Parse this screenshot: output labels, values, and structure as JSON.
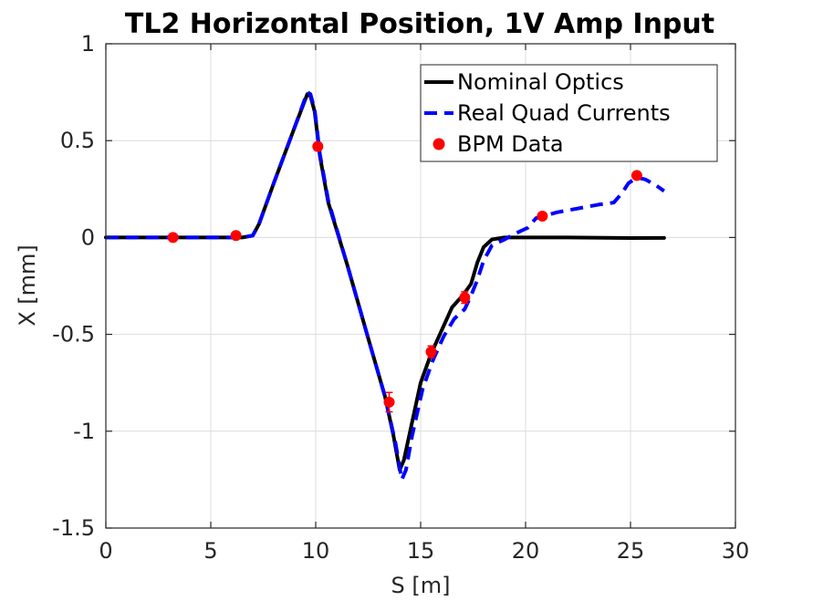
{
  "chart_data": {
    "type": "line",
    "title": "TL2 Horizontal Position, 1V Amp Input",
    "xlabel": "S [m]",
    "ylabel": "X [mm]",
    "xlim": [
      0,
      30
    ],
    "ylim": [
      -1.5,
      1
    ],
    "xticks": [
      0,
      5,
      10,
      15,
      20,
      25,
      30
    ],
    "yticks": [
      -1.5,
      -1,
      -0.5,
      0,
      0.5,
      1
    ],
    "xtick_labels": [
      "0",
      "5",
      "10",
      "15",
      "20",
      "25",
      "30"
    ],
    "ytick_labels": [
      "-1.5",
      "-1",
      "-0.5",
      "0",
      "0.5",
      "1"
    ],
    "grid": true,
    "legend_position": "top-right",
    "series": [
      {
        "name": "Nominal Optics",
        "style": "solid",
        "color": "#000000",
        "points": [
          [
            0,
            0
          ],
          [
            6.5,
            0
          ],
          [
            7.0,
            0.01
          ],
          [
            7.3,
            0.07
          ],
          [
            8.0,
            0.28
          ],
          [
            9.0,
            0.57
          ],
          [
            9.6,
            0.74
          ],
          [
            9.75,
            0.73
          ],
          [
            9.95,
            0.65
          ],
          [
            10.2,
            0.42
          ],
          [
            10.6,
            0.18
          ],
          [
            11.5,
            -0.14
          ],
          [
            12.5,
            -0.52
          ],
          [
            13.3,
            -0.82
          ],
          [
            13.7,
            -1.02
          ],
          [
            14.0,
            -1.2
          ],
          [
            14.2,
            -1.15
          ],
          [
            14.5,
            -1.0
          ],
          [
            15.0,
            -0.75
          ],
          [
            15.5,
            -0.6
          ],
          [
            16.0,
            -0.48
          ],
          [
            16.5,
            -0.36
          ],
          [
            17.0,
            -0.3
          ],
          [
            17.4,
            -0.24
          ],
          [
            17.7,
            -0.13
          ],
          [
            18.0,
            -0.05
          ],
          [
            18.4,
            -0.01
          ],
          [
            19.0,
            0
          ],
          [
            22.0,
            0
          ],
          [
            25.0,
            -0.003
          ],
          [
            26.6,
            -0.002
          ]
        ]
      },
      {
        "name": "Real Quad Currents",
        "style": "dashed",
        "color": "#0000ff",
        "points": [
          [
            0,
            0
          ],
          [
            6.5,
            0
          ],
          [
            7.0,
            0.01
          ],
          [
            7.3,
            0.07
          ],
          [
            8.0,
            0.28
          ],
          [
            9.0,
            0.57
          ],
          [
            9.6,
            0.75
          ],
          [
            9.75,
            0.74
          ],
          [
            9.95,
            0.66
          ],
          [
            10.2,
            0.43
          ],
          [
            10.6,
            0.19
          ],
          [
            11.5,
            -0.14
          ],
          [
            12.5,
            -0.52
          ],
          [
            13.3,
            -0.82
          ],
          [
            13.8,
            -1.06
          ],
          [
            14.1,
            -1.25
          ],
          [
            14.3,
            -1.2
          ],
          [
            14.6,
            -1.02
          ],
          [
            15.1,
            -0.78
          ],
          [
            15.6,
            -0.63
          ],
          [
            16.1,
            -0.51
          ],
          [
            16.6,
            -0.42
          ],
          [
            17.1,
            -0.37
          ],
          [
            17.4,
            -0.3
          ],
          [
            17.7,
            -0.22
          ],
          [
            18.0,
            -0.12
          ],
          [
            18.4,
            -0.04
          ],
          [
            19.0,
            -0.01
          ],
          [
            19.5,
            0.02
          ],
          [
            20.1,
            0.05
          ],
          [
            20.5,
            0.1
          ],
          [
            21.5,
            0.13
          ],
          [
            22.5,
            0.15
          ],
          [
            23.5,
            0.17
          ],
          [
            24.2,
            0.18
          ],
          [
            24.6,
            0.23
          ],
          [
            24.9,
            0.28
          ],
          [
            25.3,
            0.31
          ],
          [
            25.7,
            0.3
          ],
          [
            26.2,
            0.27
          ],
          [
            26.6,
            0.24
          ]
        ]
      },
      {
        "name": "BPM Data",
        "style": "markers",
        "color": "#ff0000",
        "points": [
          [
            3.2,
            0
          ],
          [
            6.2,
            0.01
          ],
          [
            10.1,
            0.47
          ],
          [
            13.5,
            -0.85
          ],
          [
            15.5,
            -0.59
          ],
          [
            17.1,
            -0.31
          ],
          [
            20.8,
            0.11
          ],
          [
            25.3,
            0.32
          ]
        ],
        "errors": [
          0.01,
          0.01,
          0.02,
          0.05,
          0.03,
          0.03,
          0.01,
          0.01
        ]
      }
    ]
  }
}
